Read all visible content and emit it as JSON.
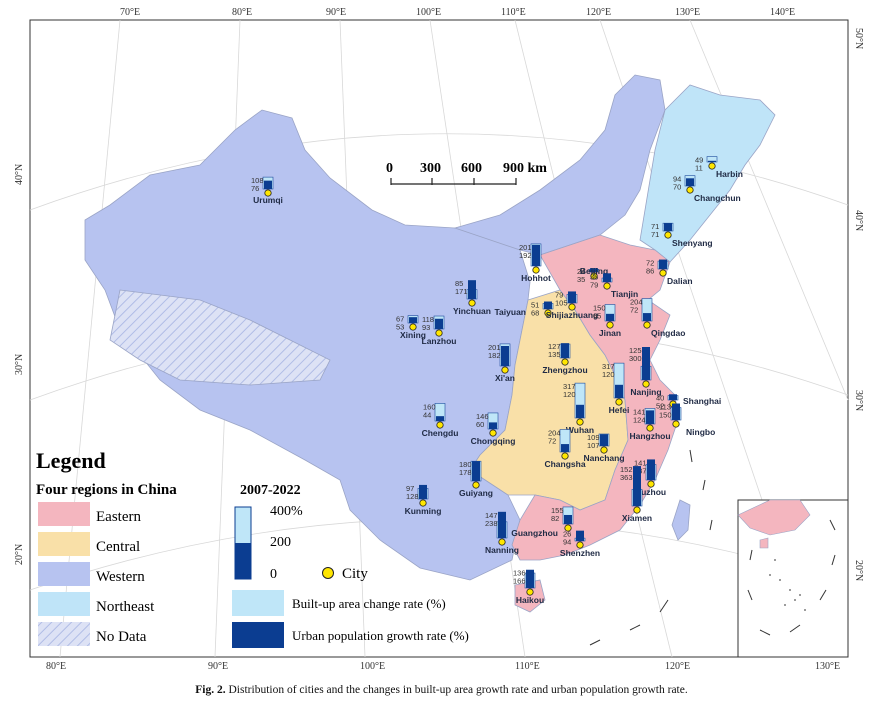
{
  "graticule": {
    "top_lon": [
      "70°E",
      "80°E",
      "90°E",
      "100°E",
      "110°E",
      "120°E",
      "130°E",
      "140°E"
    ],
    "bottom_lon": [
      "80°E",
      "90°E",
      "100°E",
      "110°E",
      "120°E",
      "130°E"
    ],
    "left_lat": [
      "40°N",
      "30°N",
      "20°N"
    ],
    "right_lat": [
      "50°N",
      "40°N",
      "30°N",
      "20°N"
    ]
  },
  "scale_bar": {
    "ticks": [
      "0",
      "300",
      "600",
      "900 km"
    ]
  },
  "legend": {
    "title": "Legend",
    "regions_title": "Four regions in China",
    "regions": [
      {
        "label": "Eastern",
        "color": "#f4b6bf"
      },
      {
        "label": "Central",
        "color": "#f9e0a8"
      },
      {
        "label": "Western",
        "color": "#b7c3f0"
      },
      {
        "label": "Northeast",
        "color": "#bfe4f8"
      },
      {
        "label": "No Data",
        "color": "#d6dcf4"
      }
    ],
    "period_title": "2007-2022",
    "axis_ticks": [
      "400%",
      "200",
      "0"
    ],
    "city_label": "City",
    "builtup_label": "Built-up area change rate (%)",
    "urban_label": "Urban population growth rate (%)",
    "colors": {
      "builtup": "#bfe6f8",
      "urban": "#0b3d91",
      "city": "#ffe600"
    }
  },
  "cities": [
    {
      "name": "Urumqi",
      "builtup": 108,
      "urban": 76
    },
    {
      "name": "Harbin",
      "builtup": 49,
      "urban": 11
    },
    {
      "name": "Changchun",
      "builtup": 94,
      "urban": 70
    },
    {
      "name": "Shenyang",
      "builtup": 71,
      "urban": 71
    },
    {
      "name": "Dalian",
      "builtup": 72,
      "urban": 86
    },
    {
      "name": "Hohhot",
      "builtup": 201,
      "urban": 192
    },
    {
      "name": "Beijing",
      "builtup": 24,
      "urban": 35
    },
    {
      "name": "Tianjin",
      "builtup": 36,
      "urban": 79
    },
    {
      "name": "Taiyuan",
      "builtup": 51,
      "urban": 68
    },
    {
      "name": "Shijiazhuang",
      "builtup": 79,
      "urban": 105
    },
    {
      "name": "Yinchuan",
      "builtup": 85,
      "urban": 171
    },
    {
      "name": "Xining",
      "builtup": 67,
      "urban": 53
    },
    {
      "name": "Lanzhou",
      "builtup": 118,
      "urban": 93
    },
    {
      "name": "Jinan",
      "builtup": 150,
      "urban": 65
    },
    {
      "name": "Qingdao",
      "builtup": 204,
      "urban": 72
    },
    {
      "name": "Zhengzhou",
      "builtup": 127,
      "urban": 135
    },
    {
      "name": "Xi'an",
      "builtup": 201,
      "urban": 182
    },
    {
      "name": "Nanjing",
      "builtup": 125,
      "urban": 300
    },
    {
      "name": "Hefei",
      "builtup": 317,
      "urban": 120
    },
    {
      "name": "Shanghai",
      "builtup": 40,
      "urban": 52
    },
    {
      "name": "Hangzhou",
      "builtup": 141,
      "urban": 124
    },
    {
      "name": "Ningbo",
      "builtup": 113,
      "urban": 150
    },
    {
      "name": "Chengdu",
      "builtup": 160,
      "urban": 44
    },
    {
      "name": "Chongqing",
      "builtup": 146,
      "urban": 60
    },
    {
      "name": "Wuhan",
      "builtup": 317,
      "urban": 120
    },
    {
      "name": "Changsha",
      "builtup": 204,
      "urban": 72
    },
    {
      "name": "Nanchang",
      "builtup": 109,
      "urban": 107
    },
    {
      "name": "Guiyang",
      "builtup": 180,
      "urban": 178
    },
    {
      "name": "Kunming",
      "builtup": 97,
      "urban": 128
    },
    {
      "name": "Fuzhou",
      "builtup": 141,
      "urban": 187
    },
    {
      "name": "Xiamen",
      "builtup": 152,
      "urban": 363
    },
    {
      "name": "Nanning",
      "builtup": 147,
      "urban": 238
    },
    {
      "name": "Guangzhou",
      "builtup": 155,
      "urban": 82
    },
    {
      "name": "Shenzhen",
      "builtup": 26,
      "urban": 94
    },
    {
      "name": "Haikou",
      "builtup": 136,
      "urban": 166
    }
  ],
  "caption": {
    "label": "Fig. 2.",
    "text": "Distribution of cities and the changes in built-up area growth rate and urban population growth rate."
  }
}
